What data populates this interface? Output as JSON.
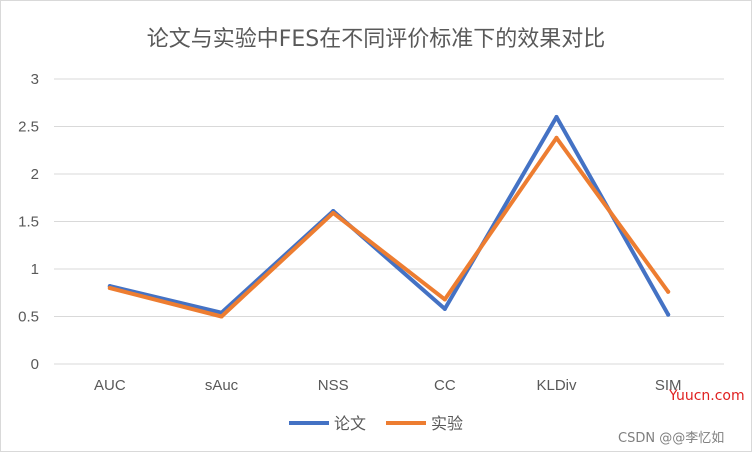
{
  "chart_data": {
    "type": "line",
    "title": "论文与实验中FES在不同评价标准下的效果对比",
    "categories": [
      "AUC",
      "sAuc",
      "NSS",
      "CC",
      "KLDiv",
      "SIM"
    ],
    "series": [
      {
        "name": "论文",
        "values": [
          0.82,
          0.54,
          1.61,
          0.58,
          2.6,
          0.52
        ],
        "color": "#4472c4"
      },
      {
        "name": "实验",
        "values": [
          0.8,
          0.5,
          1.59,
          0.68,
          2.38,
          0.76
        ],
        "color": "#ed7d31"
      }
    ],
    "ylim": [
      0,
      3
    ],
    "yticks": [
      "0",
      "0.5",
      "1",
      "1.5",
      "2",
      "2.5",
      "3"
    ],
    "grid": true,
    "legend_position": "bottom"
  },
  "watermarks": {
    "site": "Yuucn.com",
    "author": "CSDN @@李忆如"
  }
}
